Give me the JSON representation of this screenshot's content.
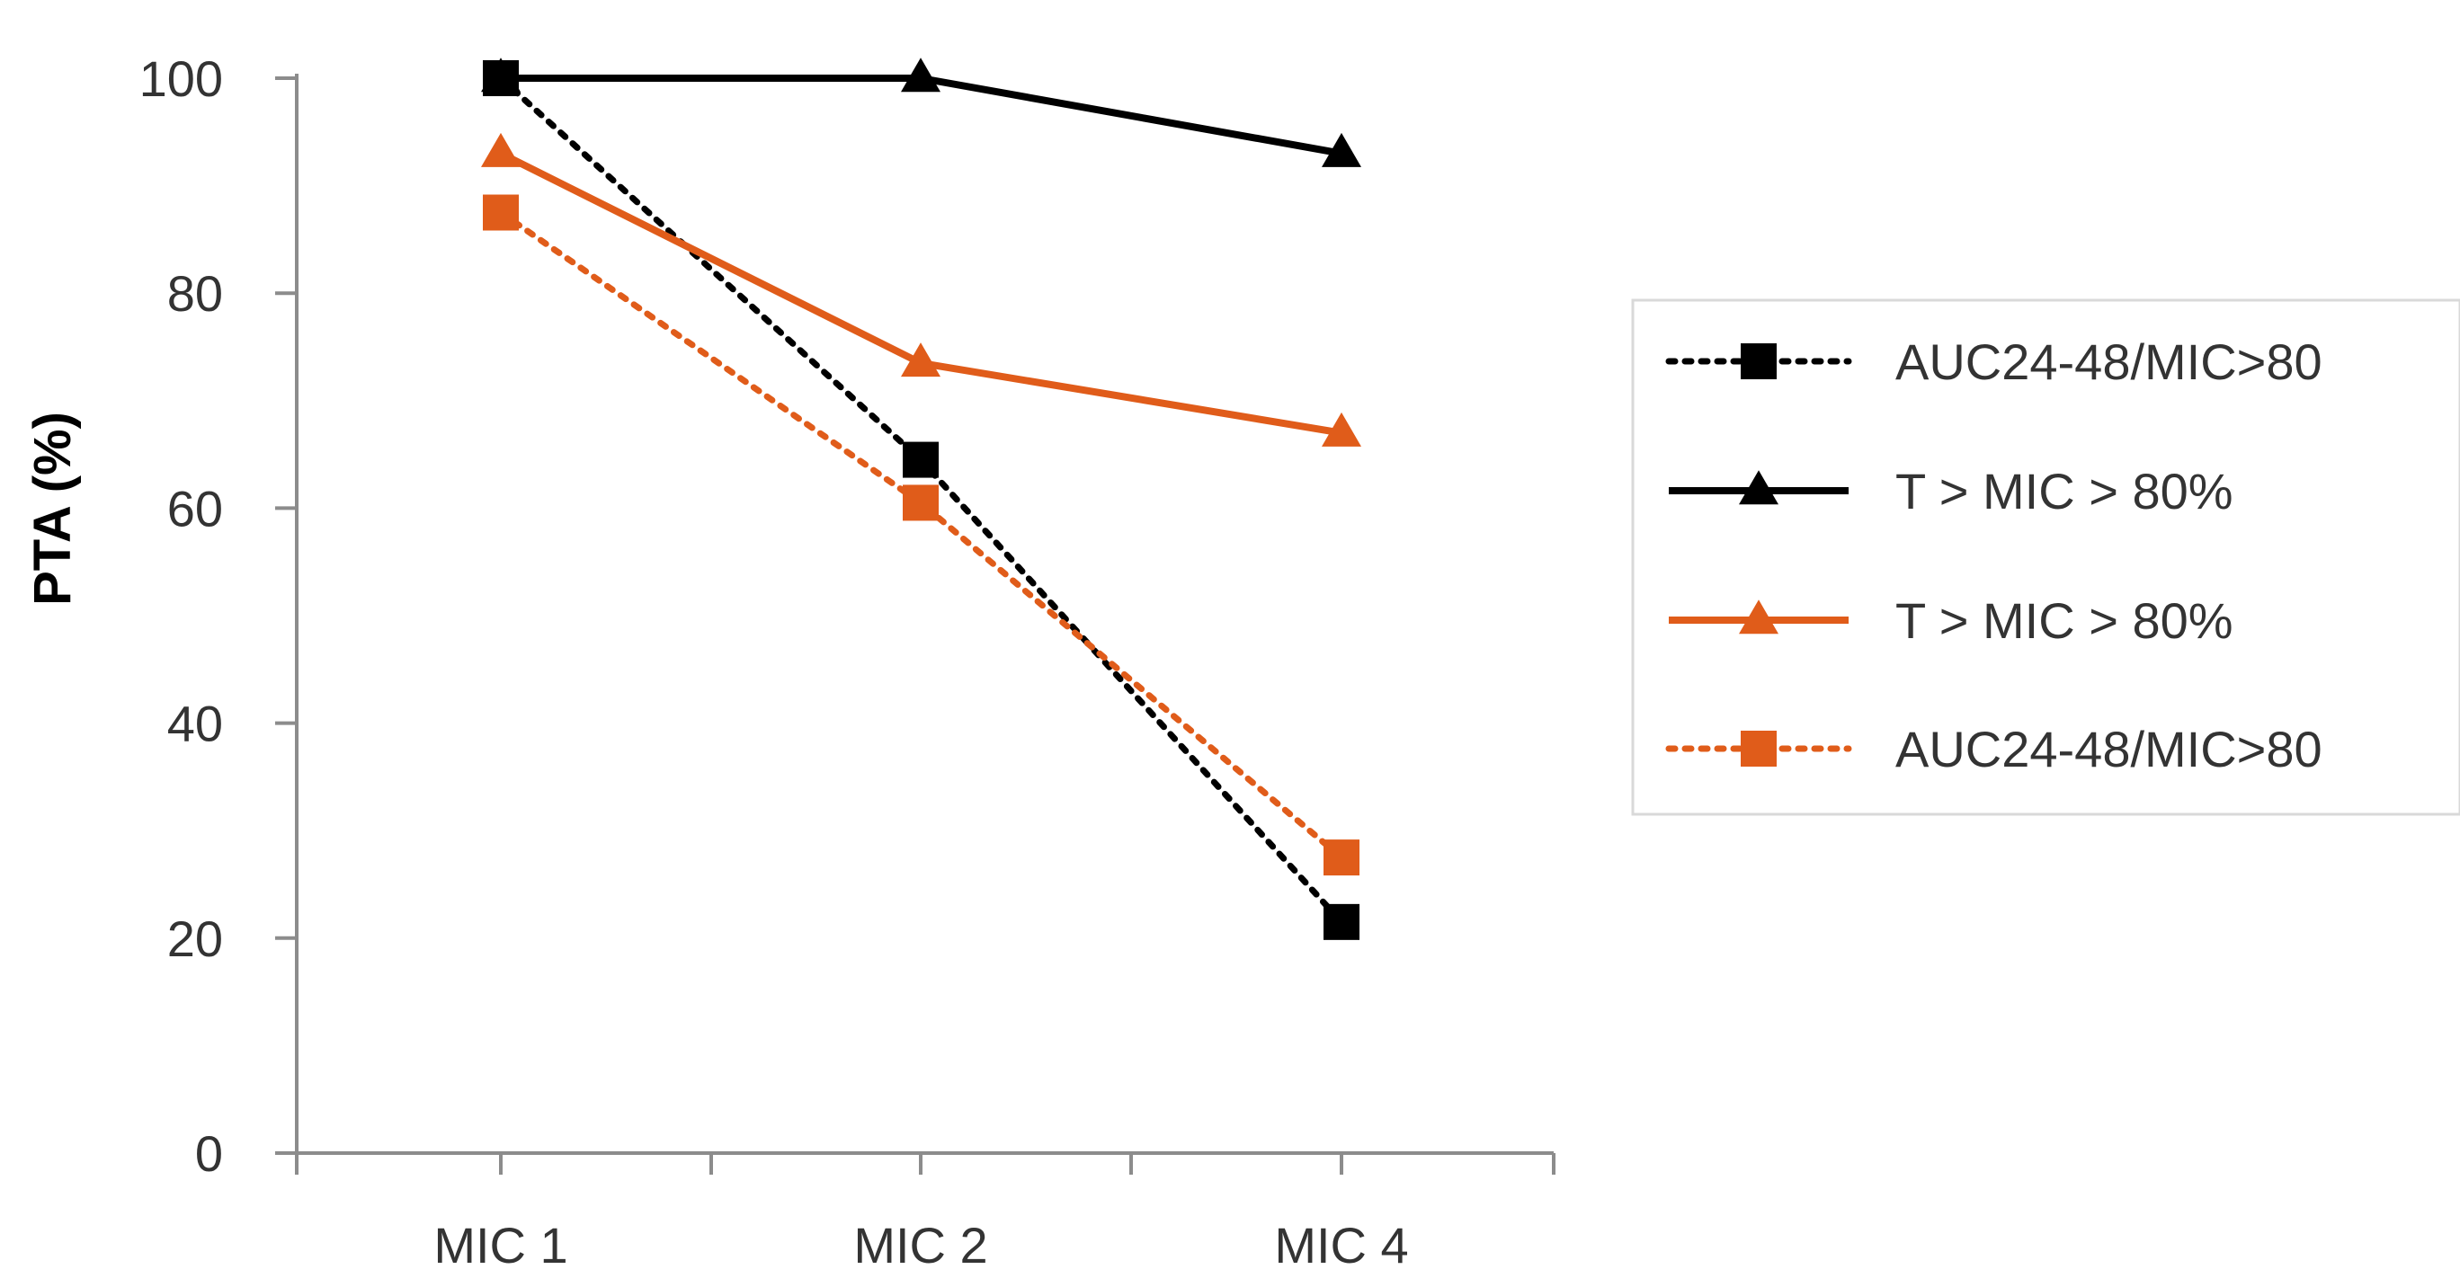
{
  "chart_data": {
    "type": "line",
    "title": "",
    "xlabel": "",
    "ylabel": "PTA (%)",
    "categories": [
      "MIC 1",
      "MIC 2",
      "MIC 4"
    ],
    "ylim": [
      0,
      100
    ],
    "yticks": [
      0,
      20,
      40,
      60,
      80,
      100
    ],
    "grid": false,
    "legend_position": "right",
    "series": [
      {
        "name": "AUC24-48/MIC>80",
        "values": [
          100,
          64.5,
          21.5
        ],
        "color": "#000000",
        "line_style": "dotted",
        "marker": "square"
      },
      {
        "name": "T > MIC > 80%",
        "values": [
          100,
          100,
          93
        ],
        "color": "#000000",
        "line_style": "solid",
        "marker": "triangle"
      },
      {
        "name": "T > MIC > 80%",
        "values": [
          93,
          73.5,
          67
        ],
        "color": "#e05c1a",
        "line_style": "solid",
        "marker": "triangle"
      },
      {
        "name": "AUC24-48/MIC>80",
        "values": [
          87.5,
          60.5,
          27.5
        ],
        "color": "#e05c1a",
        "line_style": "dotted",
        "marker": "square"
      }
    ]
  }
}
